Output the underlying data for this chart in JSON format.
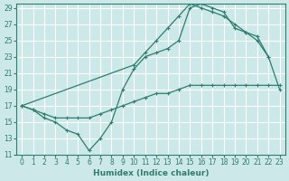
{
  "xlabel": "Humidex (Indice chaleur)",
  "bg_color": "#cce8e8",
  "grid_color": "#ffffff",
  "line_color": "#2e7d6e",
  "xlim": [
    -0.5,
    23.5
  ],
  "ylim": [
    11,
    29.5
  ],
  "xticks": [
    0,
    1,
    2,
    3,
    4,
    5,
    6,
    7,
    8,
    9,
    10,
    11,
    12,
    13,
    14,
    15,
    16,
    17,
    18,
    19,
    20,
    21,
    22,
    23
  ],
  "yticks": [
    11,
    13,
    15,
    17,
    19,
    21,
    23,
    25,
    27,
    29
  ],
  "line_top": {
    "x": [
      0,
      10,
      11,
      12,
      13,
      14,
      15,
      16,
      17,
      18,
      19,
      20,
      21,
      22
    ],
    "y": [
      17,
      22,
      23.5,
      25,
      26.5,
      28,
      29.5,
      29,
      28.5,
      28,
      27,
      26,
      25,
      23
    ]
  },
  "line_mid": {
    "x": [
      0,
      1,
      2,
      3,
      4,
      5,
      6,
      7,
      8,
      9,
      10,
      11,
      12,
      13,
      14,
      15,
      16,
      17,
      18,
      19,
      20,
      21,
      22,
      23
    ],
    "y": [
      17,
      16.5,
      16,
      15.5,
      15.5,
      15.5,
      15.5,
      16,
      16.5,
      17,
      17.5,
      18,
      18.5,
      18.5,
      19,
      19.5,
      19.5,
      19.5,
      19.5,
      19.5,
      19.5,
      19.5,
      19.5,
      19.5
    ]
  },
  "line_bot": {
    "x": [
      0,
      1,
      2,
      3,
      4,
      5,
      6,
      7,
      8,
      9,
      10,
      11,
      12,
      13,
      14,
      15,
      16,
      17,
      18,
      19,
      20,
      21,
      22,
      23
    ],
    "y": [
      17,
      16.5,
      15.5,
      15,
      14,
      13.5,
      11.5,
      13,
      15,
      19,
      21.5,
      23,
      23.5,
      24,
      25,
      29,
      29.5,
      29,
      28.5,
      26.5,
      26,
      25.5,
      23,
      19
    ]
  }
}
